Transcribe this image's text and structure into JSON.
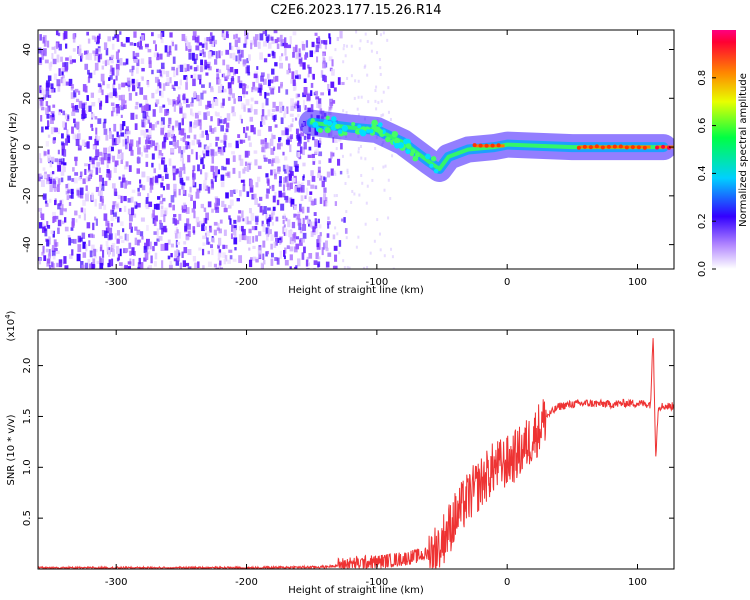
{
  "title": "C2E6.2023.177.15.26.R14",
  "chart_data": [
    {
      "type": "heatmap",
      "xlabel": "Height of straight line (km)",
      "ylabel": "Frequency (Hz)",
      "xlim": [
        -360,
        128
      ],
      "ylim": [
        -50,
        48
      ],
      "xticks": [
        -300,
        -200,
        -100,
        0,
        100
      ],
      "yticks": [
        -40,
        -20,
        0,
        20,
        40
      ],
      "colorbar": {
        "label": "Normalized spectral amplitude",
        "range": [
          0,
          1
        ],
        "ticks": [
          "0.0",
          "0.2",
          "0.4",
          "0.6",
          "0.8"
        ]
      },
      "ridge": {
        "description_points": [
          [
            -150,
            10
          ],
          [
            -120,
            8
          ],
          [
            -100,
            7
          ],
          [
            -80,
            2
          ],
          [
            -60,
            -6
          ],
          [
            -52,
            -9
          ],
          [
            -45,
            -4
          ],
          [
            -30,
            -1
          ],
          [
            -10,
            0
          ],
          [
            0,
            1
          ],
          [
            50,
            0
          ],
          [
            100,
            0
          ],
          [
            120,
            0
          ]
        ],
        "peak_amplitude_segments": [
          {
            "x": [
              -25,
              -2
            ],
            "y": 0.5,
            "amplitude": 0.9
          },
          {
            "x": [
              55,
              110
            ],
            "y": 0,
            "amplitude": 0.85
          },
          {
            "x": [
              115,
              128
            ],
            "y": 0,
            "amplitude": 1.0
          }
        ]
      },
      "noise_region": {
        "x": [
          -360,
          -145
        ],
        "y": [
          -50,
          48
        ],
        "amplitude": 0.2
      }
    },
    {
      "type": "line",
      "xlabel": "Height of straight line (km)",
      "ylabel": "SNR (10 * v/v)",
      "y_multiplier_label": "(x10",
      "y_multiplier_exp": "4",
      "xlim": [
        -360,
        128
      ],
      "ylim": [
        0,
        2.35
      ],
      "xticks": [
        -300,
        -200,
        -100,
        0,
        100
      ],
      "yticks": [
        "0.5",
        "1.0",
        "1.5",
        "2.0"
      ],
      "series": [
        {
          "color": "#ee3333",
          "x": [
            -360,
            -300,
            -200,
            -140,
            -120,
            -100,
            -80,
            -60,
            -50,
            -40,
            -30,
            -20,
            -10,
            0,
            10,
            20,
            30,
            40,
            50,
            60,
            80,
            90,
            100,
            110,
            112,
            114,
            116,
            120,
            128
          ],
          "values": [
            0.01,
            0.01,
            0.01,
            0.02,
            0.05,
            0.07,
            0.1,
            0.15,
            0.28,
            0.5,
            0.7,
            0.85,
            1.0,
            1.05,
            1.15,
            1.3,
            1.5,
            1.6,
            1.62,
            1.63,
            1.62,
            1.63,
            1.63,
            1.62,
            2.3,
            1.1,
            1.6,
            1.6,
            1.6
          ]
        }
      ]
    }
  ]
}
